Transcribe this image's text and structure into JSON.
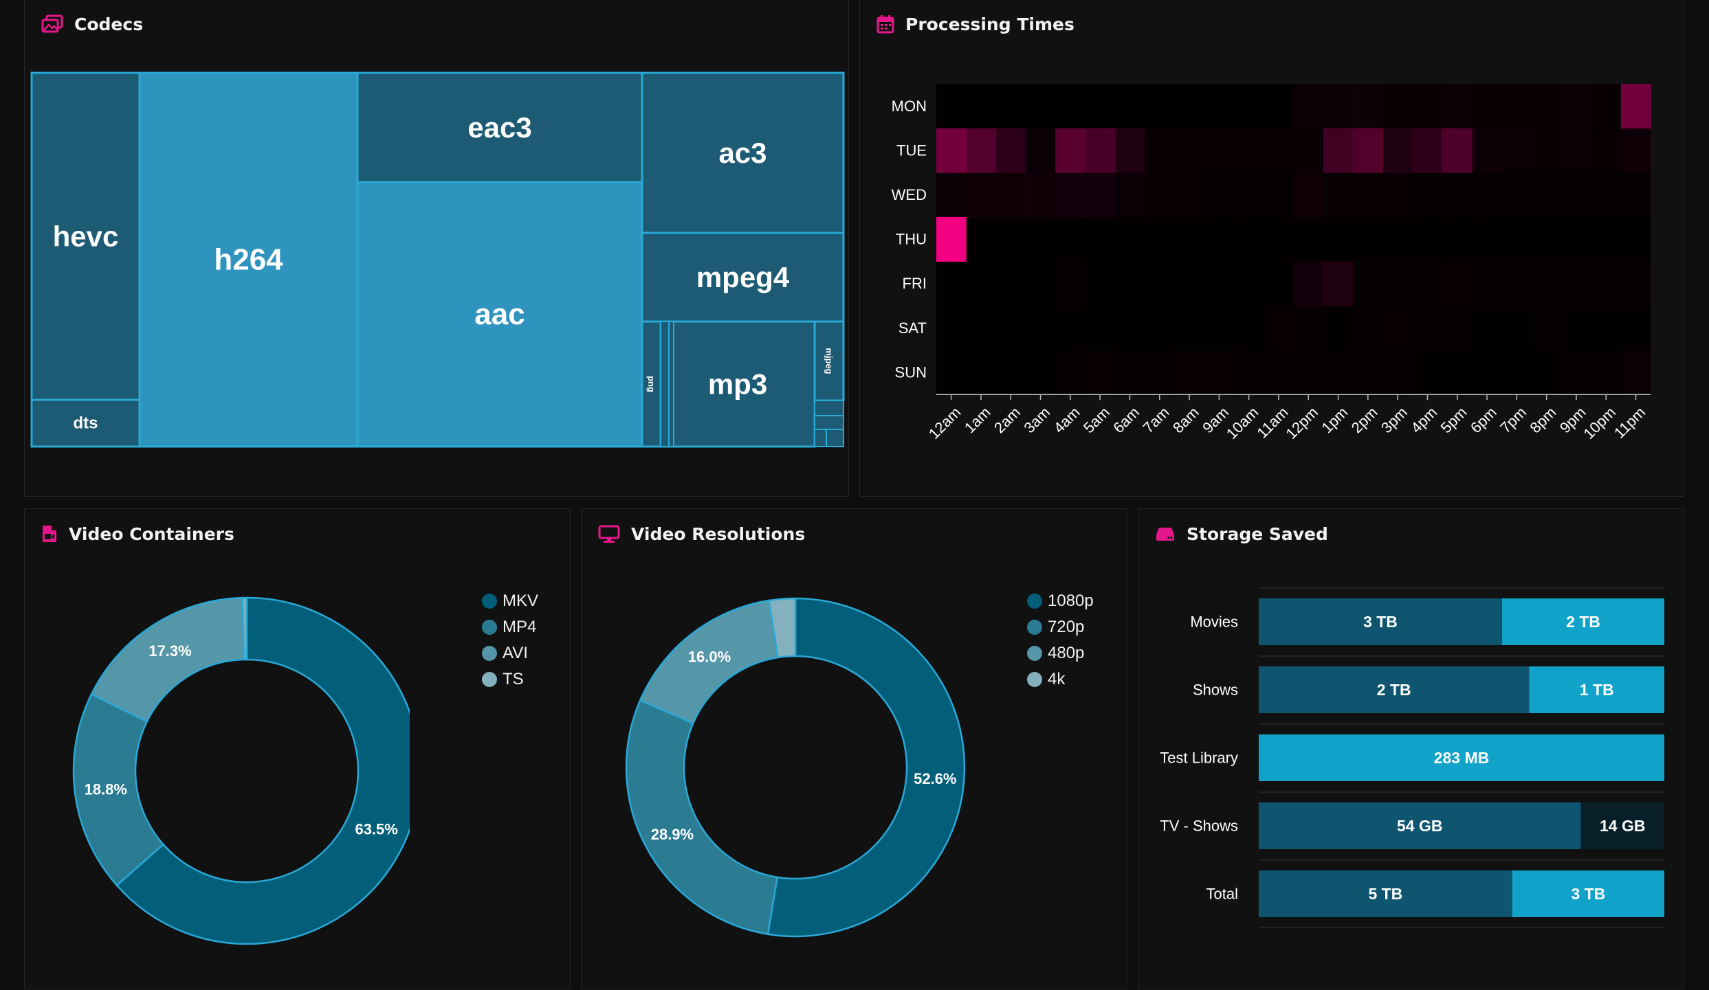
{
  "colors": {
    "accent": "#e6178b",
    "panel_bg": "#111112",
    "tile_dark": "#1d5a73",
    "tile_light": "#2e94bd",
    "tile_border": "#2aa8d6",
    "ring1": "#035e79",
    "ring2": "#2b7c93",
    "ring3": "#5597a9",
    "ring4": "#84b1bd",
    "bar_dark": "#0f5570",
    "bar_light": "#10a2c9",
    "bar_black": "#081f29"
  },
  "panels": {
    "codecs": {
      "title": "Codecs",
      "icon": "images-icon"
    },
    "processing": {
      "title": "Processing Times",
      "icon": "calendar-icon"
    },
    "containers": {
      "title": "Video Containers",
      "icon": "file-video-icon"
    },
    "resolutions": {
      "title": "Video Resolutions",
      "icon": "monitor-icon"
    },
    "storage": {
      "title": "Storage Saved",
      "icon": "hard-drive-icon"
    }
  },
  "codec_tiles": [
    {
      "label": "hevc",
      "shade": "dark"
    },
    {
      "label": "dts",
      "shade": "dark"
    },
    {
      "label": "h264",
      "shade": "light"
    },
    {
      "label": "eac3",
      "shade": "dark"
    },
    {
      "label": "aac",
      "shade": "light"
    },
    {
      "label": "ac3",
      "shade": "dark"
    },
    {
      "label": "mpeg4",
      "shade": "dark"
    },
    {
      "label": "png",
      "shade": "dark"
    },
    {
      "label": "mp3",
      "shade": "dark"
    },
    {
      "label": "mjpeg",
      "shade": "dark"
    }
  ],
  "chart_data": [
    {
      "type": "heatmap",
      "days": [
        "MON",
        "TUE",
        "WED",
        "THU",
        "FRI",
        "SAT",
        "SUN"
      ],
      "hours": [
        "12am",
        "1am",
        "2am",
        "3am",
        "4am",
        "5am",
        "6am",
        "7am",
        "8am",
        "9am",
        "10am",
        "11am",
        "12pm",
        "1pm",
        "2pm",
        "3pm",
        "4pm",
        "5pm",
        "6pm",
        "7pm",
        "8pm",
        "9pm",
        "10pm",
        "11pm"
      ],
      "intensity": [
        [
          0.01,
          0.01,
          0.01,
          0.01,
          0.01,
          0.01,
          0.01,
          0.01,
          0.01,
          0.01,
          0.01,
          0.01,
          0.04,
          0.05,
          0.05,
          0.03,
          0.03,
          0.04,
          0.03,
          0.03,
          0.03,
          0.04,
          0.03,
          0.45
        ],
        [
          0.45,
          0.32,
          0.18,
          0.04,
          0.35,
          0.28,
          0.12,
          0.03,
          0.03,
          0.03,
          0.03,
          0.03,
          0.03,
          0.25,
          0.32,
          0.12,
          0.18,
          0.3,
          0.05,
          0.04,
          0.03,
          0.04,
          0.03,
          0.06
        ],
        [
          0.04,
          0.06,
          0.06,
          0.06,
          0.07,
          0.07,
          0.04,
          0.03,
          0.03,
          0.02,
          0.02,
          0.02,
          0.06,
          0.03,
          0.03,
          0.03,
          0.02,
          0.02,
          0.02,
          0.02,
          0.02,
          0.02,
          0.02,
          0.02
        ],
        [
          0.95,
          0.01,
          0.01,
          0.01,
          0.01,
          0.01,
          0.01,
          0.01,
          0.01,
          0.01,
          0.01,
          0.01,
          0.01,
          0.01,
          0.01,
          0.01,
          0.01,
          0.01,
          0.01,
          0.01,
          0.01,
          0.01,
          0.01,
          0.01
        ],
        [
          0.01,
          0.01,
          0.01,
          0.01,
          0.02,
          0.01,
          0.01,
          0.01,
          0.01,
          0.01,
          0.01,
          0.01,
          0.08,
          0.12,
          0.02,
          0.02,
          0.02,
          0.03,
          0.02,
          0.02,
          0.02,
          0.02,
          0.02,
          0.02
        ],
        [
          0.01,
          0.01,
          0.01,
          0.01,
          0.01,
          0.01,
          0.01,
          0.01,
          0.01,
          0.01,
          0.01,
          0.03,
          0.02,
          0.01,
          0.02,
          0.03,
          0.02,
          0.02,
          0.01,
          0.01,
          0.02,
          0.01,
          0.01,
          0.01
        ],
        [
          0.01,
          0.01,
          0.01,
          0.01,
          0.02,
          0.03,
          0.02,
          0.02,
          0.03,
          0.03,
          0.02,
          0.02,
          0.02,
          0.02,
          0.02,
          0.02,
          0.01,
          0.01,
          0.01,
          0.01,
          0.01,
          0.02,
          0.02,
          0.04
        ]
      ]
    },
    {
      "type": "pie",
      "title": "Video Containers",
      "labels": [
        "MKV",
        "MP4",
        "AVI",
        "TS"
      ],
      "values": [
        63.5,
        18.8,
        17.3,
        0.4
      ],
      "value_labels": [
        "63.5%",
        "18.8%",
        "17.3%",
        ""
      ]
    },
    {
      "type": "pie",
      "title": "Video Resolutions",
      "labels": [
        "1080p",
        "720p",
        "480p",
        "4k"
      ],
      "values": [
        52.6,
        28.9,
        16.0,
        2.5
      ],
      "value_labels": [
        "52.6%",
        "28.9%",
        "16.0%",
        ""
      ]
    },
    {
      "type": "bar",
      "orientation": "horizontal-stacked",
      "title": "Storage Saved",
      "categories": [
        "Movies",
        "Shows",
        "Test Library",
        "TV - Shows",
        "Total"
      ],
      "segments": [
        [
          {
            "label": "3 TB",
            "value": 3,
            "color": "dark"
          },
          {
            "label": "2 TB",
            "value": 2,
            "color": "light"
          }
        ],
        [
          {
            "label": "2 TB",
            "value": 2,
            "color": "dark"
          },
          {
            "label": "1 TB",
            "value": 1,
            "color": "light"
          }
        ],
        [
          {
            "label": "283 MB",
            "value": 1,
            "color": "light"
          }
        ],
        [
          {
            "label": "54 GB",
            "value": 54,
            "color": "dark"
          },
          {
            "label": "14 GB",
            "value": 14,
            "color": "black"
          }
        ],
        [
          {
            "label": "5 TB",
            "value": 5,
            "color": "dark"
          },
          {
            "label": "3 TB",
            "value": 3,
            "color": "light"
          }
        ]
      ]
    }
  ]
}
